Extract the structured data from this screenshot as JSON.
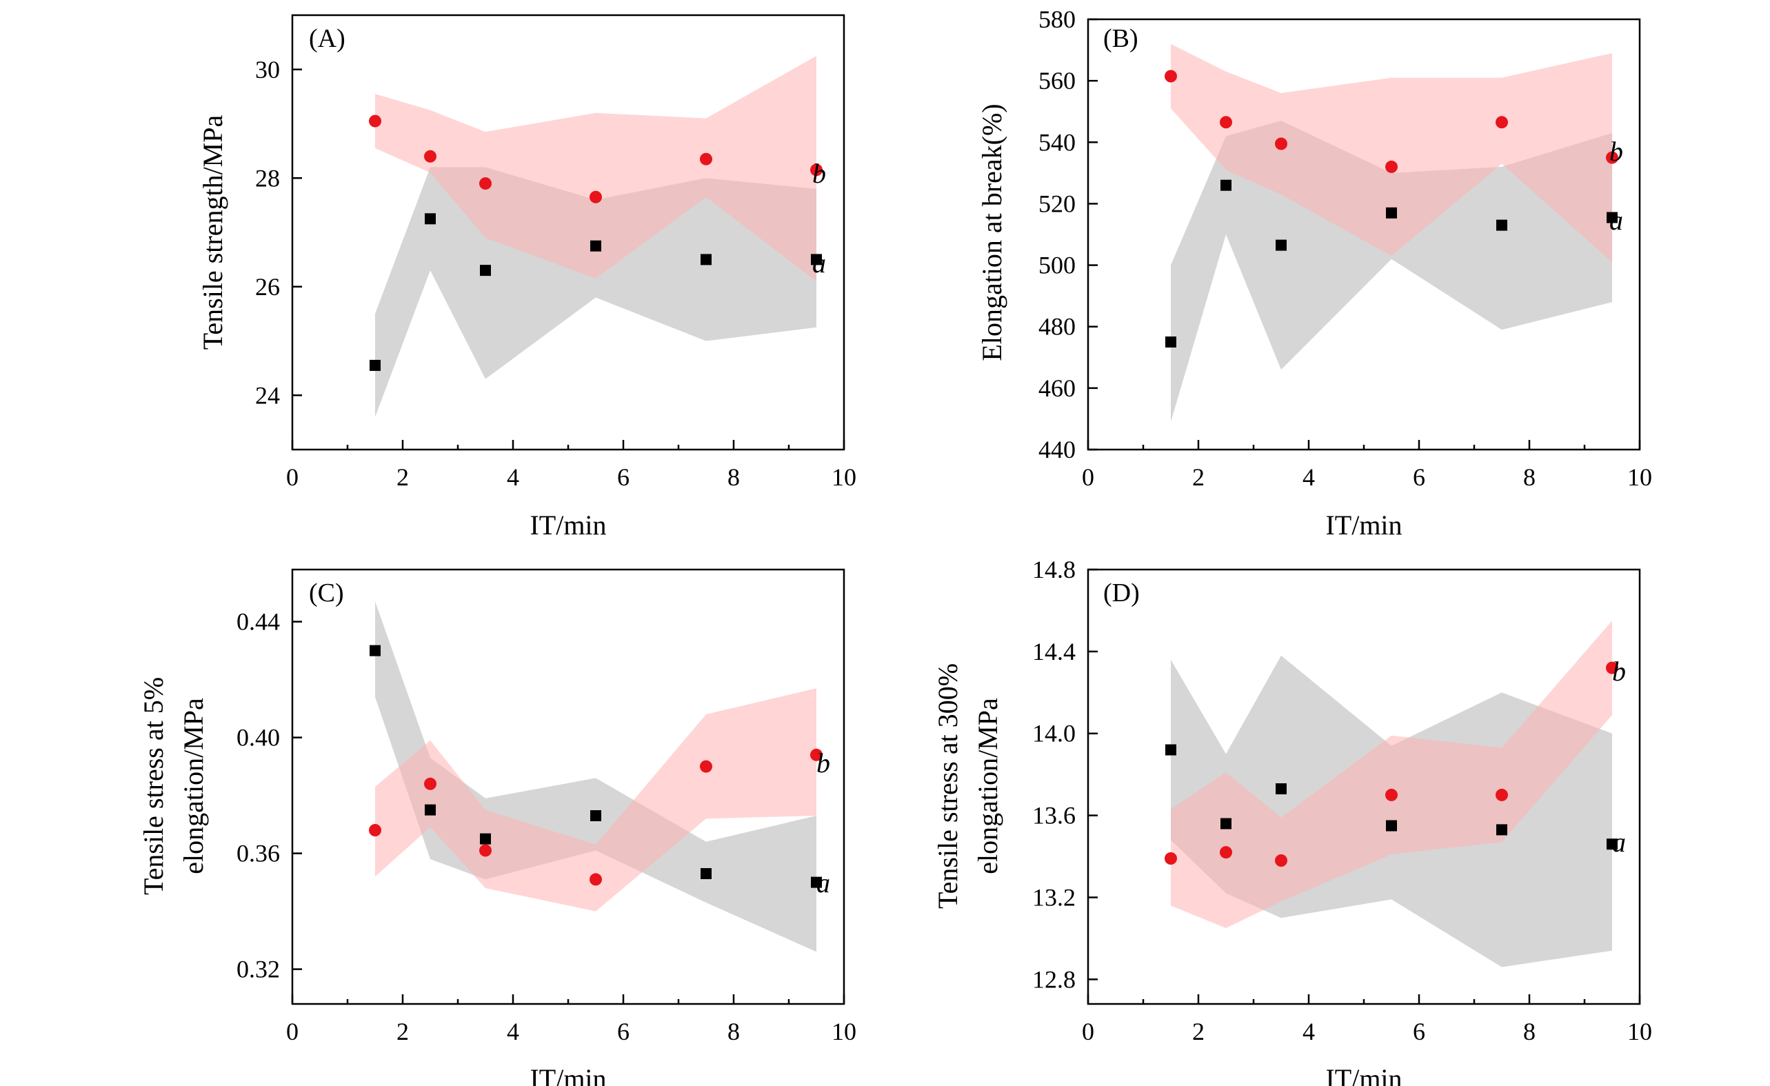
{
  "figure_title": "",
  "colors": {
    "series_a_marker": "#000000",
    "series_a_band": "#c8c8c8",
    "series_b_marker": "#e8141b",
    "series_b_band": "#ffb3b5",
    "overlap_marker": "#5a3a3a"
  },
  "chart_data": [
    {
      "type": "scatter",
      "panel_label": "(A)",
      "xlabel": "IT/min",
      "ylabel": "Tensile strength/MPa",
      "xlim": [
        0,
        10
      ],
      "ylim": [
        23,
        31
      ],
      "xticks": [
        0,
        2,
        4,
        6,
        8,
        10
      ],
      "yticks": [
        24,
        26,
        28,
        30
      ],
      "ytick_labels": [
        "24",
        "26",
        "28",
        "30"
      ],
      "series": [
        {
          "name": "a",
          "x": [
            1.5,
            2.5,
            3.5,
            5.5,
            7.5,
            9.5
          ],
          "values": [
            24.55,
            27.25,
            26.3,
            26.75,
            26.5,
            26.5
          ],
          "band_upper": [
            25.5,
            28.2,
            28.2,
            27.6,
            28.0,
            27.8
          ],
          "band_lower": [
            23.6,
            26.3,
            24.3,
            25.8,
            25.0,
            25.25
          ]
        },
        {
          "name": "b",
          "x": [
            1.5,
            2.5,
            3.5,
            5.5,
            7.5,
            9.5
          ],
          "values": [
            29.05,
            28.4,
            27.9,
            27.65,
            28.35,
            28.15
          ],
          "band_upper": [
            29.55,
            29.25,
            28.85,
            29.2,
            29.1,
            30.25
          ],
          "band_lower": [
            28.55,
            28.1,
            26.9,
            26.15,
            27.65,
            26.1
          ]
        }
      ]
    },
    {
      "type": "scatter",
      "panel_label": "(B)",
      "xlabel": "IT/min",
      "ylabel": "Elongation at break(%)",
      "xlim": [
        0,
        10
      ],
      "ylim": [
        440,
        580
      ],
      "xticks": [
        0,
        2,
        4,
        6,
        8,
        10
      ],
      "yticks": [
        440,
        460,
        480,
        500,
        520,
        540,
        560,
        580
      ],
      "ytick_labels": [
        "440",
        "460",
        "480",
        "500",
        "520",
        "540",
        "560",
        "580"
      ],
      "series": [
        {
          "name": "a",
          "x": [
            1.5,
            2.5,
            3.5,
            5.5,
            7.5,
            9.5
          ],
          "values": [
            475,
            526,
            506.5,
            517,
            513,
            515.5
          ],
          "band_upper": [
            500,
            542,
            547,
            530,
            532,
            543
          ],
          "band_lower": [
            449,
            510,
            466,
            502,
            479,
            488
          ]
        },
        {
          "name": "b",
          "x": [
            1.5,
            2.5,
            3.5,
            5.5,
            7.5,
            9.5
          ],
          "values": [
            561.5,
            546.5,
            539.5,
            532,
            546.5,
            535
          ],
          "band_upper": [
            572,
            563,
            556,
            561,
            561,
            569
          ],
          "band_lower": [
            551,
            531,
            523,
            503,
            533,
            501
          ]
        }
      ]
    },
    {
      "type": "scatter",
      "panel_label": "(C)",
      "xlabel": "IT/min",
      "ylabel": "Tensile stress at 5% elongation/MPa",
      "ylabel_lines": [
        "Tensile stress at 5%",
        "elongation/MPa"
      ],
      "xlim": [
        0,
        10
      ],
      "ylim": [
        0.308,
        0.458
      ],
      "xticks": [
        0,
        2,
        4,
        6,
        8,
        10
      ],
      "yticks": [
        0.32,
        0.36,
        0.4,
        0.44
      ],
      "ytick_labels": [
        "0.32",
        "0.36",
        "0.40",
        "0.44"
      ],
      "series": [
        {
          "name": "a",
          "x": [
            1.5,
            2.5,
            3.5,
            5.5,
            7.5,
            9.5
          ],
          "values": [
            0.43,
            0.375,
            0.365,
            0.373,
            0.353,
            0.35
          ],
          "band_upper": [
            0.447,
            0.393,
            0.379,
            0.386,
            0.364,
            0.373
          ],
          "band_lower": [
            0.414,
            0.358,
            0.351,
            0.361,
            0.343,
            0.326
          ]
        },
        {
          "name": "b",
          "x": [
            1.5,
            2.5,
            3.5,
            5.5,
            7.5,
            9.5
          ],
          "values": [
            0.368,
            0.384,
            0.361,
            0.351,
            0.39,
            0.394
          ],
          "band_upper": [
            0.383,
            0.399,
            0.375,
            0.363,
            0.408,
            0.417
          ],
          "band_lower": [
            0.352,
            0.369,
            0.348,
            0.34,
            0.372,
            0.373
          ]
        }
      ]
    },
    {
      "type": "scatter",
      "panel_label": "(D)",
      "xlabel": "IT/min",
      "ylabel": "Tensile stress at 300% elongation/MPa",
      "ylabel_lines": [
        "Tensile stress at 300%",
        "elongation/MPa"
      ],
      "xlim": [
        0,
        10
      ],
      "ylim": [
        12.68,
        14.8
      ],
      "xticks": [
        0,
        2,
        4,
        6,
        8,
        10
      ],
      "yticks": [
        12.8,
        13.2,
        13.6,
        14.0,
        14.4,
        14.8
      ],
      "ytick_labels": [
        "12.8",
        "13.2",
        "13.6",
        "14.0",
        "14.4",
        "14.8"
      ],
      "series": [
        {
          "name": "a",
          "x": [
            1.5,
            2.5,
            3.5,
            5.5,
            7.5,
            9.5
          ],
          "values": [
            13.92,
            13.56,
            13.73,
            13.55,
            13.53,
            13.46
          ],
          "band_upper": [
            14.36,
            13.9,
            14.38,
            13.94,
            14.2,
            14.0
          ],
          "band_lower": [
            13.48,
            13.22,
            13.1,
            13.19,
            12.86,
            12.94
          ]
        },
        {
          "name": "b",
          "x": [
            1.5,
            2.5,
            3.5,
            5.5,
            7.5,
            9.5
          ],
          "values": [
            13.39,
            13.42,
            13.38,
            13.7,
            13.7,
            14.32
          ],
          "band_upper": [
            13.63,
            13.81,
            13.59,
            13.99,
            13.93,
            14.55
          ],
          "band_lower": [
            13.16,
            13.05,
            13.18,
            13.41,
            13.47,
            14.09
          ]
        }
      ]
    }
  ]
}
